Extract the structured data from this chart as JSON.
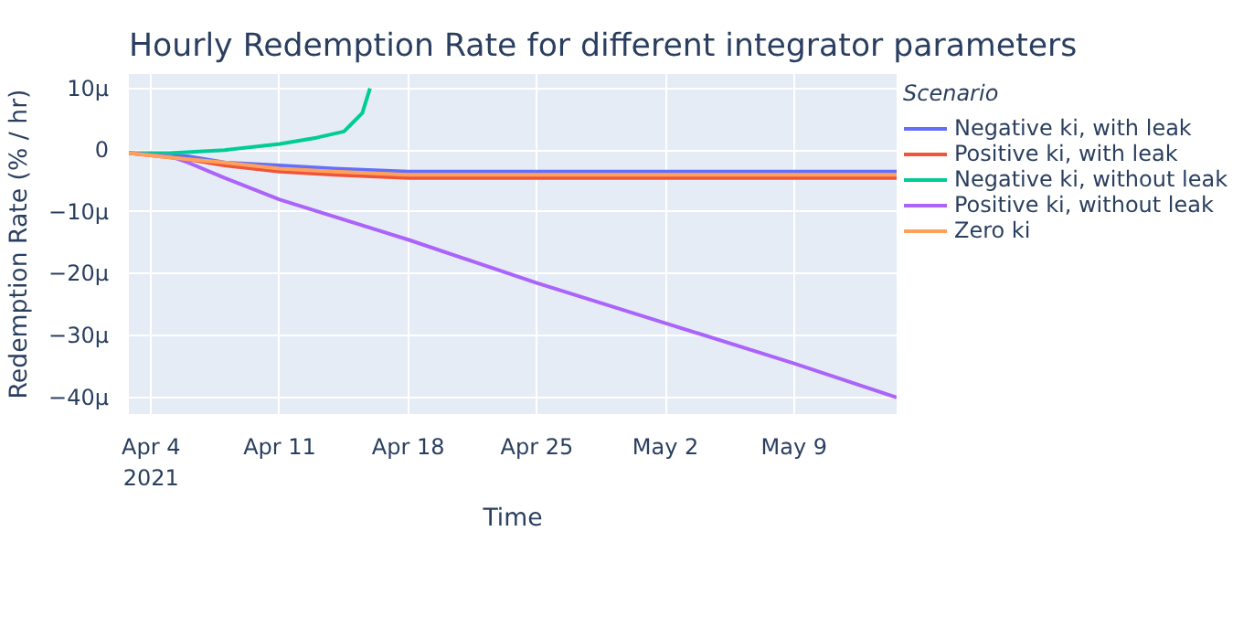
{
  "chart_data": {
    "type": "line",
    "title": "Hourly Redemption Rate for different integrator parameters",
    "xlabel": "Time",
    "ylabel": "Redemption Rate (% / hr)",
    "legend_title": "Scenario",
    "legend": "right",
    "grid": true,
    "xlim": [
      "2021-04-02T19:00",
      "2021-05-14T14:00"
    ],
    "ylim": [
      -42.7,
      12.3
    ],
    "xticks": [
      {
        "value": "2021-04-04",
        "label": "Apr 4\n2021"
      },
      {
        "value": "2021-04-11",
        "label": "Apr 11"
      },
      {
        "value": "2021-04-18",
        "label": "Apr 18"
      },
      {
        "value": "2021-04-25",
        "label": "Apr 25"
      },
      {
        "value": "2021-05-02",
        "label": "May 2"
      },
      {
        "value": "2021-05-09",
        "label": "May 9"
      }
    ],
    "yticks": [
      {
        "value": 10,
        "label": "10μ"
      },
      0,
      {
        "value": -10,
        "label": "−10μ"
      },
      {
        "value": -20,
        "label": "−20μ"
      },
      {
        "value": -30,
        "label": "−30μ"
      },
      {
        "value": -40,
        "label": "−40μ"
      }
    ],
    "series": [
      {
        "name": "Negative ki, with leak",
        "color": "#636efa",
        "x": [
          "2021-04-02T19:00",
          "2021-04-06",
          "2021-04-08",
          "2021-04-11",
          "2021-04-14",
          "2021-04-18",
          "2021-04-25",
          "2021-05-02",
          "2021-05-14T14:00"
        ],
        "values": [
          -0.5,
          -1,
          -2,
          -2.5,
          -3,
          -3.5,
          -3.5,
          -3.5,
          -3.5
        ]
      },
      {
        "name": "Positive ki, with leak",
        "color": "#ef553b",
        "x": [
          "2021-04-02T19:00",
          "2021-04-06",
          "2021-04-08",
          "2021-04-11",
          "2021-04-14",
          "2021-04-18",
          "2021-04-25",
          "2021-05-02",
          "2021-05-14T14:00"
        ],
        "values": [
          -0.5,
          -1.5,
          -2.5,
          -3.5,
          -4,
          -4.5,
          -4.5,
          -4.5,
          -4.5
        ]
      },
      {
        "name": "Negative ki, without leak",
        "color": "#00cc96",
        "x": [
          "2021-04-02T19:00",
          "2021-04-05",
          "2021-04-08",
          "2021-04-11",
          "2021-04-13",
          "2021-04-14T12:00",
          "2021-04-15",
          "2021-04-15T12:00",
          "2021-04-15T22:00"
        ],
        "values": [
          -0.5,
          -0.5,
          0,
          1,
          2,
          3,
          4.5,
          6,
          10
        ]
      },
      {
        "name": "Positive ki, without leak",
        "color": "#ab63fa",
        "x": [
          "2021-04-02T19:00",
          "2021-04-05",
          "2021-04-06",
          "2021-04-08",
          "2021-04-11",
          "2021-04-18",
          "2021-04-25",
          "2021-05-02",
          "2021-05-09",
          "2021-05-14T14:00"
        ],
        "values": [
          -0.5,
          -1,
          -2,
          -4.5,
          -8,
          -14.5,
          -21.5,
          -28,
          -34.5,
          -40
        ]
      },
      {
        "name": "Zero ki",
        "color": "#ffa15a",
        "x": [
          "2021-04-02T19:00",
          "2021-04-06",
          "2021-04-08",
          "2021-04-11",
          "2021-04-14",
          "2021-04-18",
          "2021-04-25",
          "2021-05-02",
          "2021-05-14T14:00"
        ],
        "values": [
          -0.5,
          -1.5,
          -2,
          -3,
          -3.5,
          -4,
          -4,
          -4,
          -4
        ]
      }
    ]
  }
}
